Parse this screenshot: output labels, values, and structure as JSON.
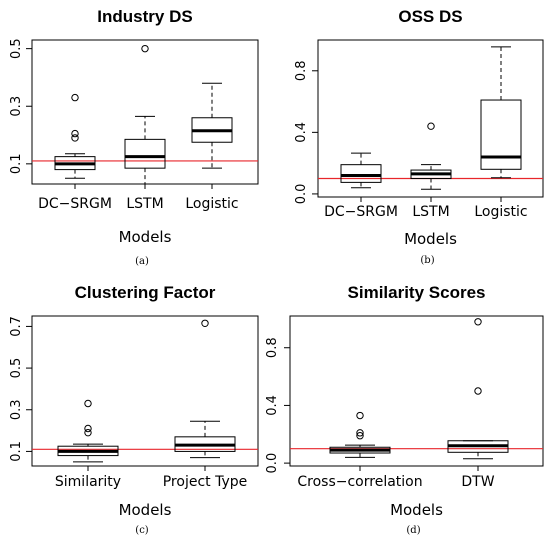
{
  "colors": {
    "reference_line": "#e8262b",
    "median": "#000000",
    "box": "#000000"
  },
  "chart_data": [
    {
      "type": "boxplot",
      "title": "Industry DS",
      "xlabel": "Models",
      "sublabel": "(a)",
      "categories": [
        "DC−SRGM",
        "LSTM",
        "Logistic"
      ],
      "ylim": [
        0.03,
        0.53
      ],
      "yticks": [
        "0.1",
        "0.3",
        "0.5"
      ],
      "yticks_values": [
        0.1,
        0.3,
        0.5
      ],
      "reference_line": 0.11,
      "boxes": [
        {
          "whisker_low": 0.05,
          "q1": 0.08,
          "median": 0.1,
          "q3": 0.125,
          "whisker_high": 0.135,
          "outliers": [
            0.19,
            0.205,
            0.33
          ]
        },
        {
          "whisker_low": 0.03,
          "q1": 0.085,
          "median": 0.125,
          "q3": 0.185,
          "whisker_high": 0.265,
          "outliers": [
            0.5
          ]
        },
        {
          "whisker_low": 0.085,
          "q1": 0.175,
          "median": 0.215,
          "q3": 0.26,
          "whisker_high": 0.38,
          "outliers": []
        }
      ]
    },
    {
      "type": "boxplot",
      "title": "OSS DS",
      "xlabel": "Models",
      "sublabel": "(b)",
      "categories": [
        "DC−SRGM",
        "LSTM",
        "Logistic"
      ],
      "ylim": [
        -0.02,
        1.0
      ],
      "yticks": [
        "0.0",
        "0.4",
        "0.8"
      ],
      "yticks_values": [
        0.0,
        0.4,
        0.8
      ],
      "reference_line": 0.1,
      "boxes": [
        {
          "whisker_low": 0.04,
          "q1": 0.075,
          "median": 0.12,
          "q3": 0.19,
          "whisker_high": 0.265,
          "outliers": []
        },
        {
          "whisker_low": 0.03,
          "q1": 0.1,
          "median": 0.13,
          "q3": 0.155,
          "whisker_high": 0.19,
          "outliers": [
            0.44
          ]
        },
        {
          "whisker_low": 0.105,
          "q1": 0.16,
          "median": 0.24,
          "q3": 0.61,
          "whisker_high": 0.955,
          "outliers": []
        }
      ]
    },
    {
      "type": "boxplot",
      "title": "Clustering Factor",
      "xlabel": "Models",
      "sublabel": "(c)",
      "categories": [
        "Similarity",
        "Project Type"
      ],
      "ylim": [
        0.03,
        0.75
      ],
      "yticks": [
        "0.1",
        "0.3",
        "0.5",
        "0.7"
      ],
      "yticks_values": [
        0.1,
        0.3,
        0.5,
        0.7
      ],
      "reference_line": 0.11,
      "boxes": [
        {
          "whisker_low": 0.05,
          "q1": 0.08,
          "median": 0.1,
          "q3": 0.125,
          "whisker_high": 0.135,
          "outliers": [
            0.19,
            0.21,
            0.33
          ]
        },
        {
          "whisker_low": 0.07,
          "q1": 0.1,
          "median": 0.13,
          "q3": 0.17,
          "whisker_high": 0.245,
          "outliers": [
            0.715
          ]
        }
      ]
    },
    {
      "type": "boxplot",
      "title": "Similarity Scores",
      "xlabel": "Models",
      "sublabel": "(d)",
      "categories": [
        "Cross−correlation",
        "DTW"
      ],
      "ylim": [
        -0.02,
        1.02
      ],
      "yticks": [
        "0.0",
        "0.4",
        "0.8"
      ],
      "yticks_values": [
        0.0,
        0.4,
        0.8
      ],
      "reference_line": 0.1,
      "boxes": [
        {
          "whisker_low": 0.04,
          "q1": 0.07,
          "median": 0.09,
          "q3": 0.11,
          "whisker_high": 0.125,
          "outliers": [
            0.19,
            0.21,
            0.33
          ]
        },
        {
          "whisker_low": 0.03,
          "q1": 0.075,
          "median": 0.12,
          "q3": 0.155,
          "whisker_high": 0.155,
          "outliers": [
            0.5,
            0.98
          ]
        }
      ]
    }
  ]
}
